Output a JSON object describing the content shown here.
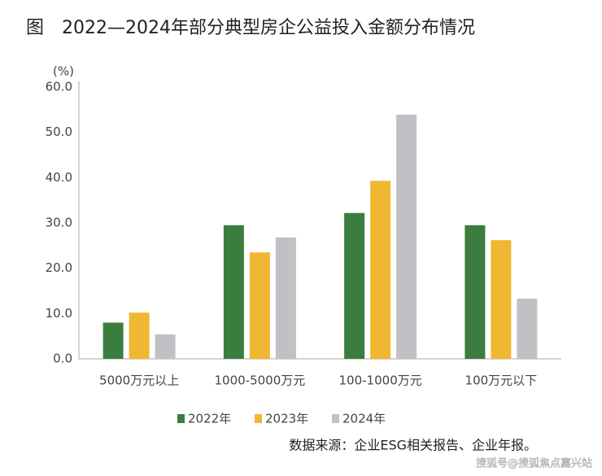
{
  "chart_data": {
    "type": "bar",
    "title": "图　2022—2024年部分典型房企公益投入金额分布情况",
    "y_label": "(%)",
    "categories": [
      "5000万元以上",
      "1000-5000万元",
      "100-1000万元",
      "100万元以下"
    ],
    "series": [
      {
        "name": "2022年",
        "color": "#3a7d3e",
        "values": [
          8.0,
          29.5,
          32.2,
          29.5
        ]
      },
      {
        "name": "2023年",
        "color": "#f0b733",
        "values": [
          10.2,
          23.5,
          39.3,
          26.2
        ]
      },
      {
        "name": "2024年",
        "color": "#c1c1c5",
        "values": [
          5.4,
          26.8,
          53.9,
          13.3
        ]
      }
    ],
    "ylim": [
      0,
      60
    ],
    "yticks": [
      {
        "value": 0,
        "label": "0.0"
      },
      {
        "value": 10,
        "label": "10.0"
      },
      {
        "value": 20,
        "label": "20.0"
      },
      {
        "value": 30,
        "label": "30.0"
      },
      {
        "value": 40,
        "label": "40.0"
      },
      {
        "value": 50,
        "label": "50.0"
      },
      {
        "value": 60,
        "label": "60.0"
      }
    ],
    "grid": false,
    "source": "数据来源：企业ESG相关报告、企业年报。",
    "watermark": "搜狐号@搜狐焦点嘉兴站"
  }
}
